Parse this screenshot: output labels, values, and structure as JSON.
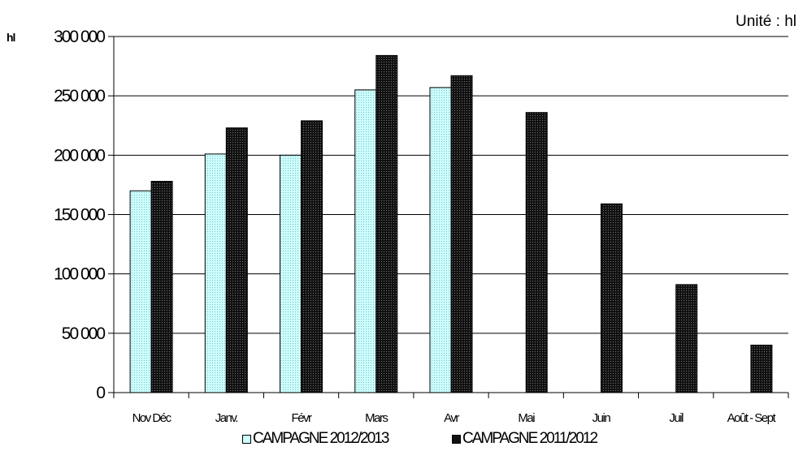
{
  "chart_data": {
    "type": "bar",
    "unit_note": "Unité : hl",
    "ylabel": "hl",
    "categories": [
      "Nov Déc",
      "Janv.",
      "Févr",
      "Mars",
      "Avr",
      "Mai",
      "Juin",
      "Juil",
      "Août - Sept"
    ],
    "series": [
      {
        "name": "CAMPAGNE 2012/2013",
        "color": "#ccffff",
        "pattern": "dotted",
        "values": [
          170000,
          201000,
          200000,
          255000,
          257000,
          null,
          null,
          null,
          null
        ]
      },
      {
        "name": "CAMPAGNE 2011/2012",
        "color": "#111111",
        "pattern": "dotted",
        "values": [
          178000,
          223000,
          229000,
          284000,
          267000,
          236000,
          159000,
          91000,
          40000
        ]
      }
    ],
    "ylim": [
      0,
      300000
    ],
    "yticks": [
      0,
      50000,
      100000,
      150000,
      200000,
      250000,
      300000
    ],
    "ytick_labels": [
      "0",
      "50 000",
      "100 000",
      "150 000",
      "200 000",
      "250 000",
      "300 000"
    ],
    "grid": true,
    "legend_position": "bottom"
  }
}
